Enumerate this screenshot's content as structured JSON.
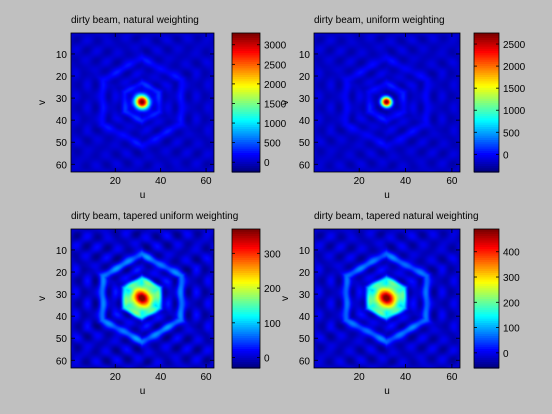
{
  "chart_data": [
    {
      "type": "heatmap",
      "title": "dirty beam, natural weighting",
      "xlabel": "u",
      "ylabel": "v",
      "x_ticks": [
        "20",
        "40",
        "60"
      ],
      "y_ticks": [
        "10",
        "20",
        "30",
        "40",
        "50",
        "60"
      ],
      "xlim": [
        1,
        63
      ],
      "ylim": [
        1,
        63
      ],
      "colorbar_ticks": [
        "0",
        "500",
        "1000",
        "1500",
        "2000",
        "2500",
        "3000"
      ],
      "colorbar_range": [
        -250,
        3300
      ],
      "peak": {
        "u": 32,
        "v": 32,
        "value": 3300
      },
      "colormap": "jet"
    },
    {
      "type": "heatmap",
      "title": "dirty beam, uniform weighting",
      "xlabel": "u",
      "ylabel": "v",
      "x_ticks": [
        "20",
        "40",
        "60"
      ],
      "y_ticks": [
        "10",
        "20",
        "30",
        "40",
        "50",
        "60"
      ],
      "xlim": [
        1,
        63
      ],
      "ylim": [
        1,
        63
      ],
      "colorbar_ticks": [
        "0",
        "500",
        "1000",
        "1500",
        "2000",
        "2500"
      ],
      "colorbar_range": [
        -400,
        2750
      ],
      "peak": {
        "u": 32,
        "v": 32,
        "value": 2750
      },
      "colormap": "jet"
    },
    {
      "type": "heatmap",
      "title": "dirty beam, tapered uniform weighting",
      "xlabel": "u",
      "ylabel": "v",
      "x_ticks": [
        "20",
        "40",
        "60"
      ],
      "y_ticks": [
        "10",
        "20",
        "30",
        "40",
        "50",
        "60"
      ],
      "xlim": [
        1,
        63
      ],
      "ylim": [
        1,
        63
      ],
      "colorbar_ticks": [
        "0",
        "100",
        "200",
        "300"
      ],
      "colorbar_range": [
        -30,
        370
      ],
      "peak": {
        "u": 32,
        "v": 32,
        "value": 370
      },
      "colormap": "jet"
    },
    {
      "type": "heatmap",
      "title": "dirty beam, tapered natural weighting",
      "xlabel": "u",
      "ylabel": "v",
      "x_ticks": [
        "20",
        "40",
        "60"
      ],
      "y_ticks": [
        "10",
        "20",
        "30",
        "40",
        "50",
        "60"
      ],
      "xlim": [
        1,
        63
      ],
      "ylim": [
        1,
        63
      ],
      "colorbar_ticks": [
        "0",
        "100",
        "200",
        "300",
        "400"
      ],
      "colorbar_range": [
        -60,
        490
      ],
      "peak": {
        "u": 32,
        "v": 32,
        "value": 490
      },
      "colormap": "jet"
    }
  ]
}
